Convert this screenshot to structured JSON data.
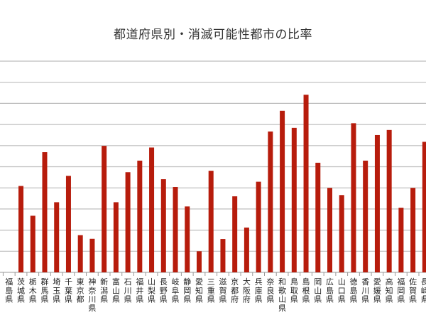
{
  "chart_data": {
    "type": "bar",
    "title": "都道府県別・消滅可能性都市の比率",
    "xlabel": "",
    "ylabel": "",
    "ylim": [
      0,
      100
    ],
    "y_grid_step": 10,
    "grid": true,
    "bar_color": "#B71C0C",
    "categories": [
      "福島県",
      "茨城県",
      "栃木県",
      "群馬県",
      "埼玉県",
      "千葉県",
      "東京都",
      "神奈川県",
      "新潟県",
      "富山県",
      "石川県",
      "福井県",
      "山梨県",
      "長野県",
      "岐阜県",
      "静岡県",
      "愛知県",
      "三重県",
      "滋賀県",
      "京都府",
      "大阪府",
      "兵庫県",
      "奈良県",
      "和歌山県",
      "鳥取県",
      "島根県",
      "岡山県",
      "広島県",
      "山口県",
      "徳島県",
      "香川県",
      "愛媛県",
      "高知県",
      "福岡県",
      "佐賀県",
      "長崎県"
    ],
    "values": [
      null,
      40.9,
      26.8,
      56.9,
      33.2,
      45.7,
      17.6,
      15.9,
      59.9,
      33.2,
      47.4,
      52.9,
      59.1,
      44.1,
      40.4,
      31.2,
      10.0,
      48.1,
      15.8,
      36.0,
      21.2,
      42.9,
      66.7,
      76.5,
      68.4,
      84.1,
      51.9,
      40.0,
      36.6,
      70.6,
      52.9,
      65.0,
      67.4,
      30.6,
      40.0,
      61.8
    ]
  }
}
